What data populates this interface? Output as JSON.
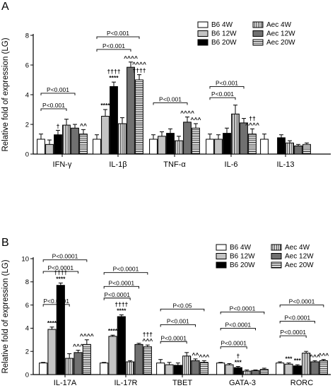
{
  "chart_data": [
    {
      "type": "bar",
      "panel_label": "A",
      "ylabel": "Relative fold of expression (LG)",
      "ylim": [
        0,
        8
      ],
      "yticks": [
        "0",
        "2",
        "4",
        "6",
        "8"
      ],
      "categories": [
        "IFN-γ",
        "IL-1β",
        "TNF-α",
        "IL-6",
        "IL-13"
      ],
      "legend_position": "top-right",
      "series": [
        {
          "name": "B6 4W",
          "values": [
            1.0,
            1.0,
            1.0,
            1.0,
            1.0
          ],
          "errors": [
            0.35,
            0.3,
            0.3,
            0.35,
            0.35
          ]
        },
        {
          "name": "B6 12W",
          "values": [
            0.65,
            2.55,
            1.2,
            1.0,
            null
          ],
          "errors": [
            0.3,
            0.45,
            0.3,
            0.3,
            null
          ]
        },
        {
          "name": "B6 20W",
          "values": [
            1.3,
            4.55,
            1.4,
            1.4,
            1.1
          ],
          "errors": [
            0.3,
            0.3,
            0.3,
            0.35,
            0.2
          ]
        },
        {
          "name": "Aec 4W",
          "values": [
            1.95,
            2.05,
            0.9,
            2.7,
            0.75
          ],
          "errors": [
            0.4,
            0.4,
            0.3,
            0.6,
            0.15
          ]
        },
        {
          "name": "Aec 12W",
          "values": [
            1.75,
            5.85,
            2.15,
            2.1,
            0.55
          ],
          "errors": [
            0.25,
            0.35,
            0.35,
            0.3,
            0.1
          ]
        },
        {
          "name": "Aec 20W",
          "values": [
            1.35,
            5.0,
            1.75,
            1.35,
            0.65
          ],
          "errors": [
            0.3,
            0.35,
            0.3,
            0.35,
            0.1
          ]
        }
      ],
      "significance_brackets": [
        {
          "label": "P<0.001",
          "from": [
            0,
            0
          ],
          "to": [
            0,
            3
          ],
          "level": 3.05
        },
        {
          "label": "P<0.001",
          "from": [
            0,
            0
          ],
          "to": [
            0,
            4
          ],
          "level": 4.1
        },
        {
          "label": "P<0.001",
          "from": [
            1,
            0
          ],
          "to": [
            1,
            4
          ],
          "level": 7.05
        },
        {
          "label": "P<0.001",
          "from": [
            1,
            0
          ],
          "to": [
            1,
            5
          ],
          "level": 7.9
        },
        {
          "label": "P<0.001",
          "from": [
            2,
            0
          ],
          "to": [
            2,
            4
          ],
          "level": 3.45
        },
        {
          "label": "P<0.001",
          "from": [
            3,
            0
          ],
          "to": [
            3,
            3
          ],
          "level": 3.8
        },
        {
          "label": "P<0.001",
          "from": [
            3,
            0
          ],
          "to": [
            3,
            4
          ],
          "level": 4.55
        }
      ],
      "bar_annotations": [
        {
          "category": 0,
          "series": 2,
          "lines": [
            "†"
          ]
        },
        {
          "category": 0,
          "series": 5,
          "lines": [
            "^^"
          ]
        },
        {
          "category": 1,
          "series": 1,
          "lines": [
            "****"
          ]
        },
        {
          "category": 1,
          "series": 2,
          "lines": [
            "††††",
            "****"
          ]
        },
        {
          "category": 1,
          "series": 4,
          "lines": [
            "^^^^"
          ]
        },
        {
          "category": 1,
          "series": 5,
          "lines": [
            "^^^^",
            "††††"
          ]
        },
        {
          "category": 2,
          "series": 4,
          "lines": [
            "^^^^"
          ]
        },
        {
          "category": 2,
          "series": 5,
          "lines": [
            "^^^"
          ]
        },
        {
          "category": 3,
          "series": 5,
          "lines": [
            "††",
            "^^^^"
          ]
        }
      ]
    },
    {
      "type": "bar",
      "panel_label": "B",
      "ylabel": "Relative fold of expression (LG)",
      "ylim": [
        0,
        10
      ],
      "yticks": [
        "0",
        "2",
        "4",
        "6",
        "8",
        "10"
      ],
      "categories": [
        "IL-17A",
        "IL-17R",
        "TBET",
        "GATA-3",
        "RORC"
      ],
      "legend_position": "top-right",
      "series": [
        {
          "name": "B6 4W",
          "values": [
            1.0,
            1.0,
            1.0,
            1.0,
            1.0
          ],
          "errors": [
            0.05,
            0.05,
            0.3,
            0.05,
            0.1
          ]
        },
        {
          "name": "B6 12W",
          "values": [
            3.9,
            3.3,
            0.85,
            0.85,
            0.9
          ],
          "errors": [
            0.2,
            0.1,
            0.2,
            0.1,
            0.1
          ]
        },
        {
          "name": "B6 20W",
          "values": [
            7.7,
            5.0,
            0.8,
            0.6,
            0.75
          ],
          "errors": [
            0.2,
            0.15,
            0.2,
            0.1,
            0.1
          ]
        },
        {
          "name": "Aec 4W",
          "values": [
            1.4,
            1.1,
            1.6,
            0.3,
            1.85
          ],
          "errors": [
            0.4,
            0.1,
            0.3,
            0.1,
            0.15
          ]
        },
        {
          "name": "Aec 12W",
          "values": [
            1.9,
            2.6,
            1.2,
            0.35,
            1.1
          ],
          "errors": [
            0.2,
            0.1,
            0.15,
            0.05,
            0.1
          ]
        },
        {
          "name": "Aec 20W",
          "values": [
            2.6,
            2.4,
            1.05,
            0.45,
            1.2
          ],
          "errors": [
            0.4,
            0.15,
            0.15,
            0.1,
            0.1
          ]
        }
      ],
      "significance_brackets": [
        {
          "label": "P<0.0001",
          "from": [
            0,
            0
          ],
          "to": [
            0,
            3
          ],
          "level": 6.05
        },
        {
          "label": "P<0.0001",
          "from": [
            0,
            0
          ],
          "to": [
            0,
            4
          ],
          "level": 8.9
        },
        {
          "label": "P<0.0001",
          "from": [
            0,
            0
          ],
          "to": [
            0,
            5
          ],
          "level": 9.9
        },
        {
          "label": "P<0.0001",
          "from": [
            1,
            0
          ],
          "to": [
            1,
            3
          ],
          "level": 6.6
        },
        {
          "label": "P<0.0001",
          "from": [
            1,
            0
          ],
          "to": [
            1,
            4
          ],
          "level": 7.6
        },
        {
          "label": "P<0.0001",
          "from": [
            1,
            0
          ],
          "to": [
            1,
            5
          ],
          "level": 8.8
        },
        {
          "label": "P<0.0001",
          "from": [
            2,
            0
          ],
          "to": [
            2,
            3
          ],
          "level": 2.85
        },
        {
          "label": "P<0.001",
          "from": [
            2,
            0
          ],
          "to": [
            2,
            4
          ],
          "level": 4.3
        },
        {
          "label": "P<0.05",
          "from": [
            2,
            0
          ],
          "to": [
            2,
            5
          ],
          "level": 5.65
        },
        {
          "label": "P<0.0001",
          "from": [
            3,
            0
          ],
          "to": [
            3,
            3
          ],
          "level": 2.4
        },
        {
          "label": "P<0.0001",
          "from": [
            3,
            0
          ],
          "to": [
            3,
            4
          ],
          "level": 4.0
        },
        {
          "label": "P<0.0001",
          "from": [
            3,
            0
          ],
          "to": [
            3,
            5
          ],
          "level": 5.4
        },
        {
          "label": "P<0.0001",
          "from": [
            4,
            0
          ],
          "to": [
            4,
            3
          ],
          "level": 3.35
        },
        {
          "label": "P<0.0001",
          "from": [
            4,
            0
          ],
          "to": [
            4,
            4
          ],
          "level": 4.6
        },
        {
          "label": "P<0.0001",
          "from": [
            4,
            0
          ],
          "to": [
            4,
            5
          ],
          "level": 6.0
        }
      ],
      "bar_annotations": [
        {
          "category": 0,
          "series": 1,
          "lines": [
            "****"
          ]
        },
        {
          "category": 0,
          "series": 2,
          "lines": [
            "††††",
            "****"
          ]
        },
        {
          "category": 0,
          "series": 4,
          "lines": [
            "^^^"
          ]
        },
        {
          "category": 0,
          "series": 5,
          "lines": [
            "^^^^"
          ]
        },
        {
          "category": 1,
          "series": 1,
          "lines": [
            "****"
          ]
        },
        {
          "category": 1,
          "series": 2,
          "lines": [
            "††††",
            "****"
          ]
        },
        {
          "category": 1,
          "series": 5,
          "lines": [
            "†††",
            "^^^"
          ]
        },
        {
          "category": 2,
          "series": 4,
          "lines": [
            "^^"
          ]
        },
        {
          "category": 2,
          "series": 5,
          "lines": [
            "^^^"
          ]
        },
        {
          "category": 3,
          "series": 2,
          "lines": [
            "†",
            "***"
          ]
        },
        {
          "category": 4,
          "series": 1,
          "lines": [
            "***"
          ]
        },
        {
          "category": 4,
          "series": 2,
          "lines": [
            "***"
          ]
        },
        {
          "category": 4,
          "series": 4,
          "lines": [
            "^^^"
          ]
        },
        {
          "category": 4,
          "series": 5,
          "lines": [
            "^^^"
          ]
        }
      ]
    }
  ]
}
